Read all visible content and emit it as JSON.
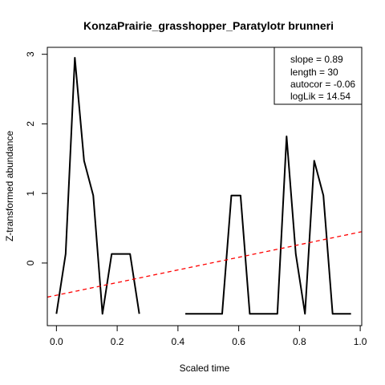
{
  "chart_data": {
    "type": "line",
    "title": "KonzaPrairie_grasshopper_Paratylotr brunneri",
    "xlabel": "Scaled time",
    "ylabel": "Z-transformed abundance",
    "xlim": [
      -0.03,
      1.005
    ],
    "ylim": [
      -0.9,
      3.1
    ],
    "x_ticks": [
      "0.0",
      "0.2",
      "0.4",
      "0.6",
      "0.8",
      "1.0"
    ],
    "y_ticks": [
      "0",
      "1",
      "2",
      "3"
    ],
    "grid": false,
    "series": [
      {
        "style": "solid",
        "color": "#000000",
        "x": [
          0.0,
          0.0303,
          0.0606,
          0.0909,
          0.1212,
          0.1515,
          0.1818,
          0.2121,
          0.2424,
          0.2727,
          0.303,
          0.3333,
          0.3636,
          0.3939,
          0.4242,
          0.4545,
          0.4848,
          0.5152,
          0.5455,
          0.5758,
          0.6061,
          0.6364,
          0.6667,
          0.697,
          0.7273,
          0.7576,
          0.7879,
          0.8182,
          0.8485,
          0.8788,
          0.9091,
          0.9394,
          0.9697
        ],
        "y": [
          -0.73,
          0.13,
          2.95,
          1.47,
          0.97,
          -0.73,
          0.13,
          0.13,
          0.13,
          -0.73,
          null,
          null,
          null,
          null,
          -0.73,
          -0.73,
          -0.73,
          -0.73,
          -0.73,
          0.97,
          0.97,
          -0.73,
          -0.73,
          -0.73,
          -0.73,
          1.82,
          0.13,
          -0.73,
          1.47,
          0.97,
          -0.73,
          -0.73,
          -0.73
        ]
      },
      {
        "style": "dashed",
        "color": "#ff0000",
        "x": [
          -0.03,
          1.005
        ],
        "y": [
          -0.49,
          0.45
        ]
      }
    ],
    "legend": {
      "placement": "top-right",
      "entries": [
        "slope = 0.89",
        "length = 30",
        "autocor = -0.06",
        "logLik = 14.54"
      ]
    }
  }
}
